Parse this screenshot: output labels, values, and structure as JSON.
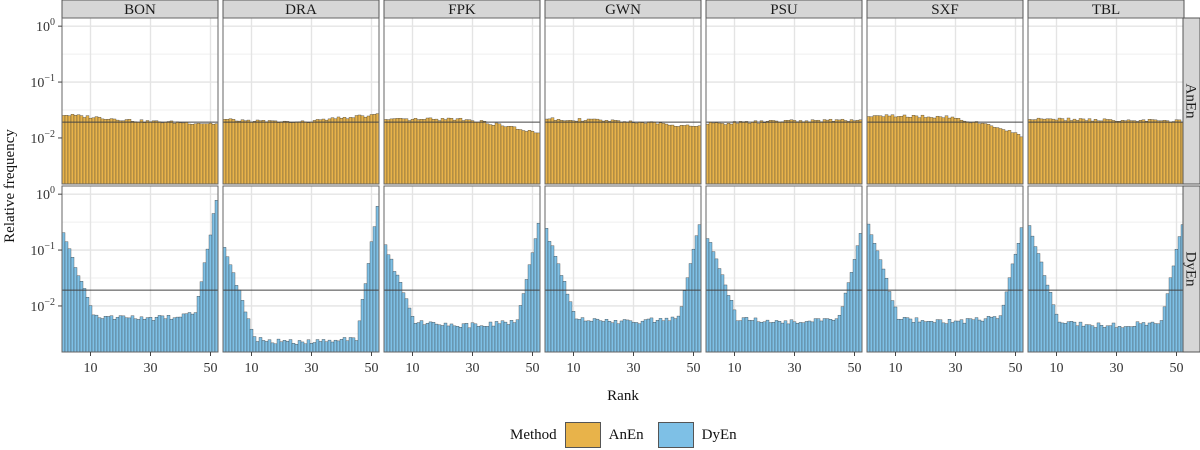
{
  "chart_data": {
    "type": "bar",
    "ylabel": "Relative frequency",
    "xlabel": "Rank",
    "y_scale": "log10",
    "ylim": [
      0.0015,
      1.4
    ],
    "y_ticks": [
      {
        "value": 1,
        "label": "10",
        "exp": "0"
      },
      {
        "value": 0.1,
        "label": "10",
        "exp": "−1"
      },
      {
        "value": 0.01,
        "label": "10",
        "exp": "−2"
      }
    ],
    "x_ticks": [
      "10",
      "30",
      "50"
    ],
    "x_tick_values": [
      10,
      30,
      50
    ],
    "num_ranks": 52,
    "uniform_reference": 0.0192,
    "panels": [
      "BON",
      "DRA",
      "FPK",
      "GWN",
      "PSU",
      "SXF",
      "TBL"
    ],
    "rows": [
      {
        "method": "AnEn",
        "color": "#E8B34A"
      },
      {
        "method": "DyEn",
        "color": "#7EC0E6"
      }
    ],
    "series_shape": {
      "AnEn": {
        "BON": {
          "first": 0.026,
          "mid": 0.02,
          "last": 0.018
        },
        "DRA": {
          "first": 0.021,
          "mid": 0.019,
          "last": 0.026
        },
        "FPK": {
          "first": 0.021,
          "mid": 0.022,
          "last": 0.012
        },
        "GWN": {
          "first": 0.022,
          "mid": 0.02,
          "last": 0.016
        },
        "PSU": {
          "first": 0.018,
          "mid": 0.02,
          "last": 0.021
        },
        "SXF": {
          "first": 0.025,
          "mid": 0.024,
          "last": 0.011
        },
        "TBL": {
          "first": 0.022,
          "mid": 0.021,
          "last": 0.02
        }
      },
      "DyEn": {
        "BON": {
          "first": 0.2,
          "mid": 0.008,
          "last": 0.8
        },
        "DRA": {
          "first": 0.12,
          "mid": 0.003,
          "last": 0.6
        },
        "FPK": {
          "first": 0.12,
          "mid": 0.006,
          "last": 0.32
        },
        "GWN": {
          "first": 0.23,
          "mid": 0.007,
          "last": 0.3
        },
        "PSU": {
          "first": 0.18,
          "mid": 0.007,
          "last": 0.18
        },
        "SXF": {
          "first": 0.3,
          "mid": 0.007,
          "last": 0.25
        },
        "TBL": {
          "first": 0.28,
          "mid": 0.006,
          "last": 0.3
        }
      }
    }
  },
  "legend": {
    "title": "Method",
    "items": [
      {
        "label": "AnEn",
        "color": "#E8B34A"
      },
      {
        "label": "DyEn",
        "color": "#7EC0E6"
      }
    ]
  }
}
